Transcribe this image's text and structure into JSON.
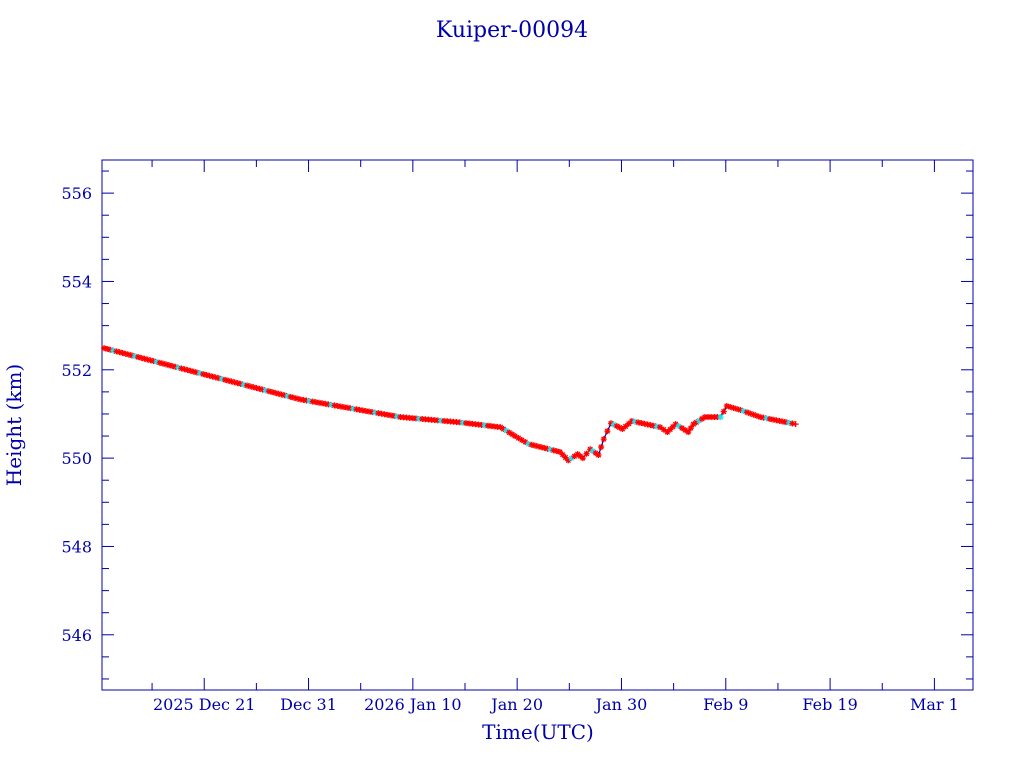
{
  "chart_data": {
    "type": "scatter",
    "title": "Kuiper-00094",
    "xlabel": "Time(UTC)",
    "ylabel": "Height (km)",
    "x_units": "days since 2025 Dec 21 00:00 UTC",
    "xlim": [
      -9.8,
      73.7
    ],
    "ylim": [
      544.75,
      556.75
    ],
    "x_ticks": [
      {
        "value": 0,
        "label": "2025 Dec 21"
      },
      {
        "value": 10,
        "label": "Dec 31"
      },
      {
        "value": 20,
        "label": "2026 Jan 10"
      },
      {
        "value": 30,
        "label": "Jan 20"
      },
      {
        "value": 40,
        "label": "Jan 30"
      },
      {
        "value": 50,
        "label": "Feb  9"
      },
      {
        "value": 60,
        "label": "Feb 19"
      },
      {
        "value": 70,
        "label": "Mar  1"
      }
    ],
    "y_ticks": [
      {
        "value": 546,
        "label": "546"
      },
      {
        "value": 548,
        "label": "548"
      },
      {
        "value": 550,
        "label": "550"
      },
      {
        "value": 552,
        "label": "552"
      },
      {
        "value": 554,
        "label": "554"
      },
      {
        "value": 556,
        "label": "556"
      }
    ],
    "grid": false,
    "colors": {
      "axis": "#0000a8",
      "line": "#0000b0",
      "marker": "#ff0000",
      "marker_alt": "#22e0f0"
    },
    "series": [
      {
        "name": "height",
        "points": [
          [
            -9.6,
            552.49
          ],
          [
            -0.4,
            551.92
          ],
          [
            9.2,
            551.33
          ],
          [
            18.8,
            550.93
          ],
          [
            24.5,
            550.81
          ],
          [
            28.4,
            550.7
          ],
          [
            29.8,
            550.5
          ],
          [
            31.1,
            550.32
          ],
          [
            34.1,
            550.14
          ],
          [
            34.9,
            549.95
          ],
          [
            35.8,
            550.09
          ],
          [
            36.3,
            550.0
          ],
          [
            37.0,
            550.2
          ],
          [
            37.8,
            550.07
          ],
          [
            38.3,
            550.43
          ],
          [
            39.0,
            550.79
          ],
          [
            40.1,
            550.66
          ],
          [
            41.0,
            550.84
          ],
          [
            43.7,
            550.7
          ],
          [
            44.4,
            550.59
          ],
          [
            45.2,
            550.77
          ],
          [
            46.4,
            550.59
          ],
          [
            46.9,
            550.77
          ],
          [
            48.0,
            550.93
          ],
          [
            49.5,
            550.93
          ],
          [
            50.1,
            551.18
          ],
          [
            51.4,
            551.09
          ],
          [
            53.3,
            550.93
          ],
          [
            56.7,
            550.77
          ]
        ]
      }
    ]
  }
}
